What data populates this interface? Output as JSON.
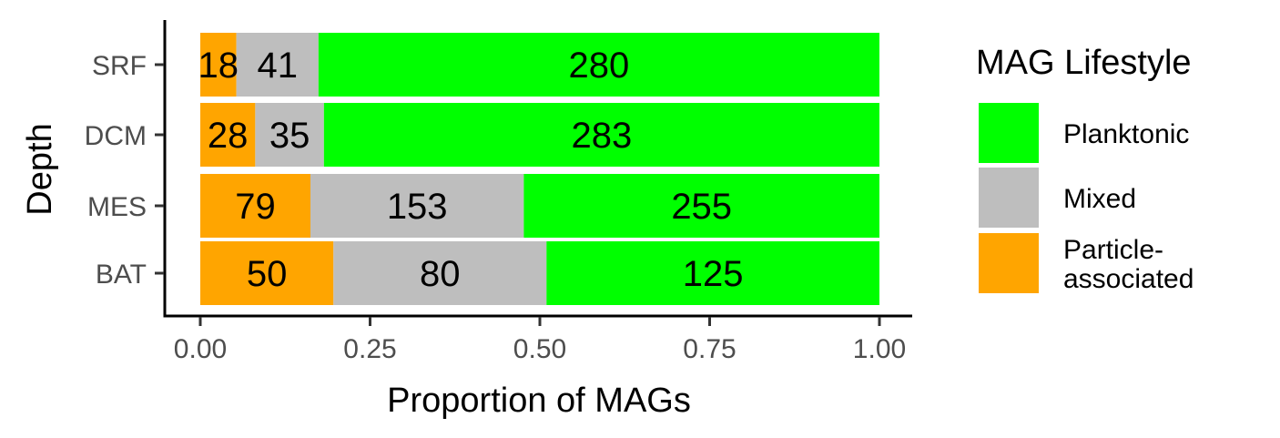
{
  "chart_data": {
    "type": "bar",
    "orientation": "horizontal",
    "stacked": true,
    "normalized": true,
    "categories": [
      "SRF",
      "DCM",
      "MES",
      "BAT"
    ],
    "series": [
      {
        "name": "Particle-associated",
        "values": [
          18,
          28,
          79,
          50
        ],
        "color": "#FFA500"
      },
      {
        "name": "Mixed",
        "values": [
          41,
          35,
          153,
          80
        ],
        "color": "#BEBEBE"
      },
      {
        "name": "Planktonic",
        "values": [
          280,
          283,
          255,
          125
        ],
        "color": "#00FF00"
      }
    ],
    "xlabel": "Proportion of MAGs",
    "ylabel": "Depth",
    "xlim": [
      0,
      1
    ],
    "xticks": [
      "0.00",
      "0.25",
      "0.50",
      "0.75",
      "1.00"
    ],
    "grid": false,
    "legend": {
      "title": "MAG Lifestyle",
      "position": "right",
      "items": [
        {
          "lines": [
            "Planktonic"
          ],
          "color": "#00FF00"
        },
        {
          "lines": [
            "Mixed"
          ],
          "color": "#BEBEBE"
        },
        {
          "lines": [
            "Particle-",
            "associated"
          ],
          "color": "#FFA500"
        }
      ]
    }
  }
}
